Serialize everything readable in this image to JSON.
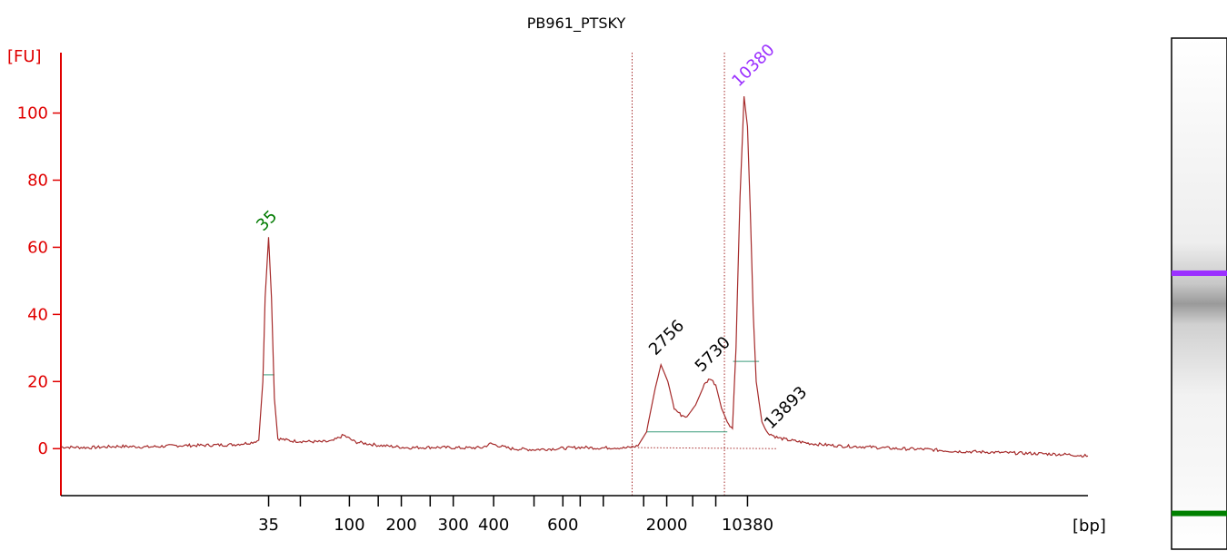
{
  "chart_data": {
    "type": "line",
    "title": "PB961_PTSKY",
    "ylabel": "[FU]",
    "xlabel": "[bp]",
    "ylim": [
      -14,
      118
    ],
    "yticks": [
      0,
      20,
      40,
      60,
      80,
      100
    ],
    "xtick_labels": [
      {
        "label": "35",
        "t": 36
      },
      {
        "label": "",
        "t": 41.5
      },
      {
        "label": "100",
        "t": 50
      },
      {
        "label": "",
        "t": 55
      },
      {
        "label": "200",
        "t": 59
      },
      {
        "label": "",
        "t": 64
      },
      {
        "label": "300",
        "t": 68
      },
      {
        "label": "400",
        "t": 75
      },
      {
        "label": "",
        "t": 82
      },
      {
        "label": "600",
        "t": 87
      },
      {
        "label": "",
        "t": 90
      },
      {
        "label": "",
        "t": 94
      },
      {
        "label": "",
        "t": 101
      },
      {
        "label": "2000",
        "t": 105
      },
      {
        "label": "",
        "t": 109.5
      },
      {
        "label": "",
        "t": 113.5
      },
      {
        "label": "10380",
        "t": 119
      }
    ],
    "region_markers_t": [
      99,
      115
    ],
    "series": [
      {
        "color": "#a52a2a",
        "points": [
          [
            0,
            0.5
          ],
          [
            5,
            0.3
          ],
          [
            10,
            0.7
          ],
          [
            15,
            0.5
          ],
          [
            20,
            0.9
          ],
          [
            25,
            1.0
          ],
          [
            30,
            1.2
          ],
          [
            33,
            1.8
          ],
          [
            34.3,
            2.5
          ],
          [
            35,
            20
          ],
          [
            35.4,
            45
          ],
          [
            36,
            63
          ],
          [
            36.5,
            45
          ],
          [
            37,
            15
          ],
          [
            37.6,
            3
          ],
          [
            40,
            2.3
          ],
          [
            45,
            2.0
          ],
          [
            47,
            2.2
          ],
          [
            49,
            4.0
          ],
          [
            51,
            2.0
          ],
          [
            55,
            1.0
          ],
          [
            60,
            0.3
          ],
          [
            65,
            0.4
          ],
          [
            70,
            0.2
          ],
          [
            73,
            0.3
          ],
          [
            74.5,
            1.5
          ],
          [
            76,
            0.8
          ],
          [
            78,
            0.0
          ],
          [
            82,
            -0.3
          ],
          [
            86,
            0.0
          ],
          [
            90,
            0.4
          ],
          [
            93,
            0.2
          ],
          [
            96,
            0.3
          ],
          [
            98,
            0.2
          ],
          [
            100,
            0.8
          ],
          [
            101.5,
            5
          ],
          [
            103,
            18
          ],
          [
            104,
            25
          ],
          [
            105.2,
            20
          ],
          [
            106.3,
            12
          ],
          [
            107.5,
            10
          ],
          [
            108.5,
            9.5
          ],
          [
            110,
            13
          ],
          [
            111.5,
            19
          ],
          [
            112.5,
            21
          ],
          [
            113.5,
            19
          ],
          [
            114.5,
            12
          ],
          [
            115.5,
            8
          ],
          [
            116.4,
            6
          ],
          [
            117,
            30
          ],
          [
            117.7,
            75
          ],
          [
            118.4,
            105
          ],
          [
            119,
            96
          ],
          [
            119.5,
            70
          ],
          [
            120,
            40
          ],
          [
            120.5,
            20
          ],
          [
            121.5,
            8
          ],
          [
            122.3,
            5
          ],
          [
            123.3,
            4
          ],
          [
            124.3,
            3.2
          ],
          [
            126,
            2.6
          ],
          [
            130,
            1.5
          ],
          [
            135,
            0.8
          ],
          [
            140,
            0.5
          ],
          [
            145,
            0.0
          ],
          [
            150,
            -0.2
          ],
          [
            155,
            -0.8
          ],
          [
            160,
            -1.0
          ],
          [
            165,
            -1.3
          ],
          [
            170,
            -1.5
          ],
          [
            175,
            -1.8
          ],
          [
            178,
            -2.2
          ]
        ]
      }
    ],
    "peak_labels": [
      {
        "label": "35",
        "t": 36,
        "y": 63,
        "color": "#007a00"
      },
      {
        "label": "2756",
        "t": 104,
        "y": 26,
        "color": "#000000"
      },
      {
        "label": "5730",
        "t": 112,
        "y": 21,
        "color": "#000000"
      },
      {
        "label": "10380",
        "t": 118.4,
        "y": 106,
        "color": "#9b30ff"
      },
      {
        "label": "13893",
        "t": 124,
        "y": 4,
        "color": "#000000"
      }
    ],
    "gel_lane": {
      "bands": [
        {
          "color": "#9b30ff",
          "pos": 0.46
        },
        {
          "color": "#008000",
          "pos": 0.93
        }
      ]
    }
  }
}
